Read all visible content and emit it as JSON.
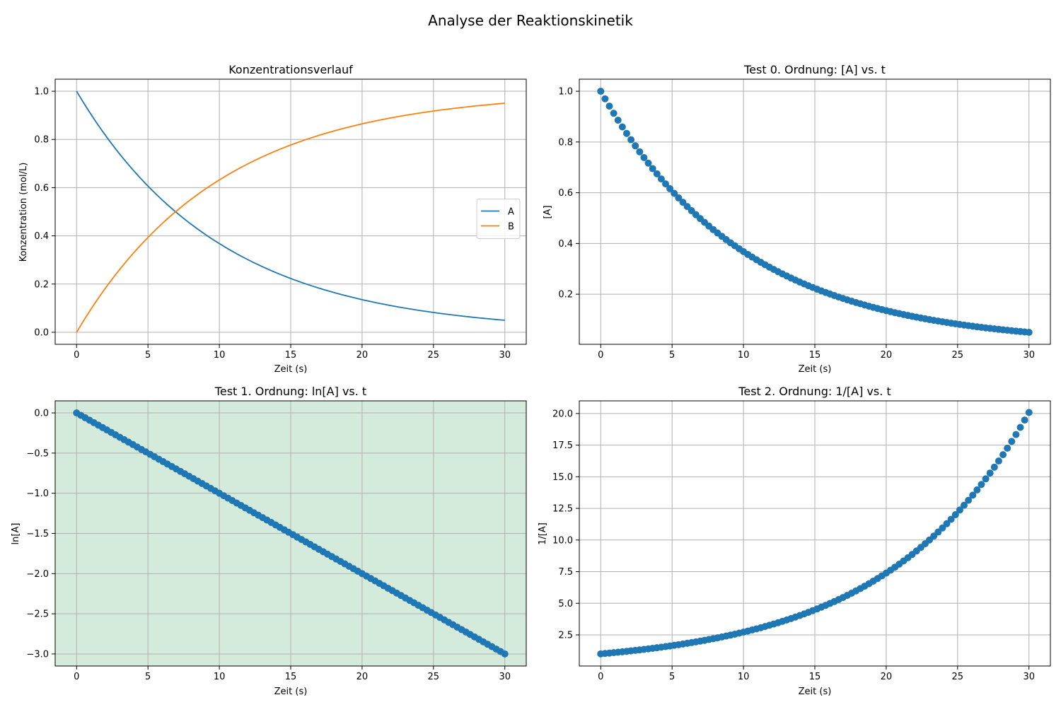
{
  "figure": {
    "suptitle": "Analyse der Reaktionskinetik"
  },
  "colors": {
    "series_a": "#1f77b4",
    "series_b": "#ff7f0e",
    "grid": "#b0b0b0",
    "highlight_bg": "#d4ebdb"
  },
  "chart_data": [
    {
      "id": "konzentration",
      "type": "line",
      "title": "Konzentrationsverlauf",
      "xlabel": "Zeit (s)",
      "ylabel": "Konzentration (mol/L)",
      "xlim": [
        -1.5,
        31.5
      ],
      "ylim": [
        -0.05,
        1.05
      ],
      "xticks": [
        0,
        5,
        10,
        15,
        20,
        25,
        30
      ],
      "yticks": [
        0.0,
        0.2,
        0.4,
        0.6,
        0.8,
        1.0
      ],
      "ytick_decimals": 1,
      "grid": true,
      "legend": "center-right",
      "x_range": [
        0,
        30
      ],
      "num_points": 100,
      "series": [
        {
          "name": "A",
          "color": "#1f77b4",
          "formula": "exp(-0.1*t)"
        },
        {
          "name": "B",
          "color": "#ff7f0e",
          "formula": "1-exp(-0.1*t)"
        }
      ]
    },
    {
      "id": "ordnung0",
      "type": "scatter",
      "title": "Test 0. Ordnung: [A] vs. t",
      "xlabel": "Zeit (s)",
      "ylabel": "[A]",
      "xlim": [
        -1.5,
        31.5
      ],
      "ylim": [
        0.0025,
        1.0475
      ],
      "xticks": [
        0,
        5,
        10,
        15,
        20,
        25,
        30
      ],
      "yticks": [
        0.2,
        0.4,
        0.6,
        0.8,
        1.0
      ],
      "ytick_decimals": 1,
      "grid": true,
      "x_range": [
        0,
        30
      ],
      "num_points": 100,
      "series": [
        {
          "color": "#1f77b4",
          "formula": "exp(-0.1*t)"
        }
      ]
    },
    {
      "id": "ordnung1",
      "type": "scatter",
      "title": "Test 1. Ordnung: ln[A] vs. t",
      "xlabel": "Zeit (s)",
      "ylabel": "ln[A]",
      "xlim": [
        -1.5,
        31.5
      ],
      "ylim": [
        -3.15,
        0.15
      ],
      "xticks": [
        0,
        5,
        10,
        15,
        20,
        25,
        30
      ],
      "yticks": [
        0.0,
        -0.5,
        -1.0,
        -1.5,
        -2.0,
        -2.5,
        -3.0
      ],
      "ytick_decimals": 1,
      "grid": true,
      "highlighted": true,
      "x_range": [
        0,
        30
      ],
      "num_points": 100,
      "series": [
        {
          "color": "#1f77b4",
          "formula": "-0.1*t"
        }
      ]
    },
    {
      "id": "ordnung2",
      "type": "scatter",
      "title": "Test 2. Ordnung: 1/[A] vs. t",
      "xlabel": "Zeit (s)",
      "ylabel": "1/[A]",
      "xlim": [
        -1.5,
        31.5
      ],
      "ylim": [
        0.04,
        21.0
      ],
      "xticks": [
        0,
        5,
        10,
        15,
        20,
        25,
        30
      ],
      "yticks": [
        2.5,
        5.0,
        7.5,
        10.0,
        12.5,
        15.0,
        17.5,
        20.0
      ],
      "ytick_decimals": 1,
      "grid": true,
      "x_range": [
        0,
        30
      ],
      "num_points": 100,
      "series": [
        {
          "color": "#1f77b4",
          "formula": "exp(0.1*t)"
        }
      ]
    }
  ]
}
